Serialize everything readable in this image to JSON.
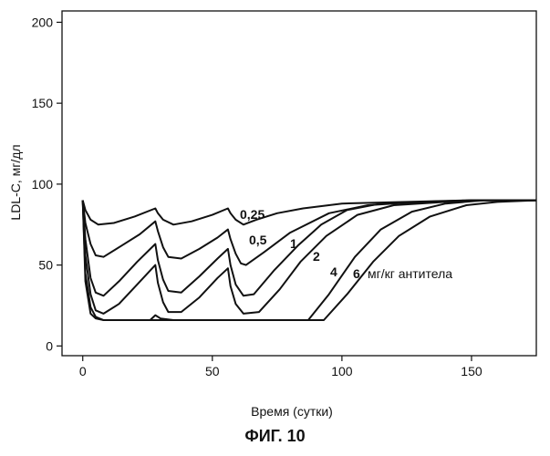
{
  "figure_caption": "ФИГ. 10",
  "chart_data": {
    "type": "line",
    "title": "",
    "xlabel": "Время (сутки)",
    "ylabel": "LDL-C, мг/дл",
    "xlim": [
      -8,
      175
    ],
    "ylim": [
      -6,
      207
    ],
    "x_ticks": [
      0,
      50,
      100,
      150
    ],
    "y_ticks": [
      0,
      50,
      100,
      150,
      200
    ],
    "grid": false,
    "legend": "none",
    "series": [
      {
        "name": "0,25",
        "points": [
          [
            0,
            90
          ],
          [
            1,
            84
          ],
          [
            3,
            78
          ],
          [
            6,
            75
          ],
          [
            12,
            76
          ],
          [
            20,
            80
          ],
          [
            28,
            85
          ],
          [
            29,
            82
          ],
          [
            31,
            78
          ],
          [
            35,
            75
          ],
          [
            42,
            77
          ],
          [
            50,
            81
          ],
          [
            56,
            85
          ],
          [
            57,
            82
          ],
          [
            59,
            78
          ],
          [
            62,
            75
          ],
          [
            67,
            78
          ],
          [
            75,
            82
          ],
          [
            85,
            85
          ],
          [
            100,
            88
          ],
          [
            125,
            89
          ],
          [
            150,
            90
          ],
          [
            175,
            90
          ]
        ]
      },
      {
        "name": "0,5",
        "points": [
          [
            0,
            90
          ],
          [
            1,
            76
          ],
          [
            3,
            63
          ],
          [
            5,
            56
          ],
          [
            8,
            55
          ],
          [
            15,
            62
          ],
          [
            22,
            69
          ],
          [
            28,
            77
          ],
          [
            29,
            71
          ],
          [
            31,
            61
          ],
          [
            33,
            55
          ],
          [
            38,
            54
          ],
          [
            45,
            60
          ],
          [
            52,
            67
          ],
          [
            56,
            72
          ],
          [
            57,
            66
          ],
          [
            59,
            57
          ],
          [
            61,
            51
          ],
          [
            63,
            50
          ],
          [
            70,
            58
          ],
          [
            80,
            70
          ],
          [
            95,
            82
          ],
          [
            110,
            87
          ],
          [
            130,
            89
          ],
          [
            150,
            90
          ],
          [
            175,
            90
          ]
        ]
      },
      {
        "name": "1",
        "points": [
          [
            0,
            90
          ],
          [
            1,
            66
          ],
          [
            3,
            42
          ],
          [
            5,
            33
          ],
          [
            8,
            31
          ],
          [
            14,
            40
          ],
          [
            21,
            52
          ],
          [
            28,
            63
          ],
          [
            29,
            53
          ],
          [
            31,
            41
          ],
          [
            33,
            34
          ],
          [
            38,
            33
          ],
          [
            45,
            43
          ],
          [
            52,
            54
          ],
          [
            56,
            60
          ],
          [
            57,
            50
          ],
          [
            59,
            38
          ],
          [
            62,
            31
          ],
          [
            66,
            32
          ],
          [
            74,
            47
          ],
          [
            83,
            62
          ],
          [
            92,
            75
          ],
          [
            102,
            84
          ],
          [
            115,
            88
          ],
          [
            135,
            89
          ],
          [
            150,
            90
          ],
          [
            175,
            90
          ]
        ]
      },
      {
        "name": "2",
        "points": [
          [
            0,
            90
          ],
          [
            1,
            56
          ],
          [
            3,
            32
          ],
          [
            5,
            22
          ],
          [
            8,
            20
          ],
          [
            14,
            26
          ],
          [
            21,
            38
          ],
          [
            28,
            50
          ],
          [
            29,
            39
          ],
          [
            31,
            27
          ],
          [
            33,
            21
          ],
          [
            38,
            21
          ],
          [
            45,
            30
          ],
          [
            52,
            42
          ],
          [
            56,
            48
          ],
          [
            57,
            37
          ],
          [
            59,
            26
          ],
          [
            62,
            20
          ],
          [
            68,
            21
          ],
          [
            76,
            35
          ],
          [
            84,
            52
          ],
          [
            94,
            68
          ],
          [
            106,
            81
          ],
          [
            120,
            87
          ],
          [
            140,
            89
          ],
          [
            155,
            90
          ],
          [
            175,
            90
          ]
        ]
      },
      {
        "name": "4",
        "points": [
          [
            0,
            90
          ],
          [
            1,
            45
          ],
          [
            3,
            24
          ],
          [
            5,
            18
          ],
          [
            8,
            16
          ],
          [
            14,
            16
          ],
          [
            21,
            16
          ],
          [
            26,
            16
          ],
          [
            28,
            19
          ],
          [
            30,
            17
          ],
          [
            35,
            16
          ],
          [
            50,
            16
          ],
          [
            57,
            16
          ],
          [
            60,
            16
          ],
          [
            70,
            16
          ],
          [
            80,
            16
          ],
          [
            87,
            16
          ],
          [
            95,
            32
          ],
          [
            105,
            55
          ],
          [
            115,
            72
          ],
          [
            127,
            83
          ],
          [
            140,
            88
          ],
          [
            155,
            90
          ],
          [
            175,
            90
          ]
        ]
      },
      {
        "name": "6 мг/кг антитела",
        "points": [
          [
            0,
            90
          ],
          [
            1,
            40
          ],
          [
            3,
            20
          ],
          [
            5,
            17
          ],
          [
            8,
            16
          ],
          [
            20,
            16
          ],
          [
            40,
            16
          ],
          [
            60,
            16
          ],
          [
            80,
            16
          ],
          [
            93,
            16
          ],
          [
            102,
            32
          ],
          [
            112,
            52
          ],
          [
            122,
            68
          ],
          [
            134,
            80
          ],
          [
            148,
            87
          ],
          [
            160,
            89
          ],
          [
            175,
            90
          ]
        ]
      }
    ],
    "annotations": [
      "0,25",
      "0,5",
      "1",
      "2",
      "4",
      "6",
      "мг/кг антитела"
    ]
  }
}
